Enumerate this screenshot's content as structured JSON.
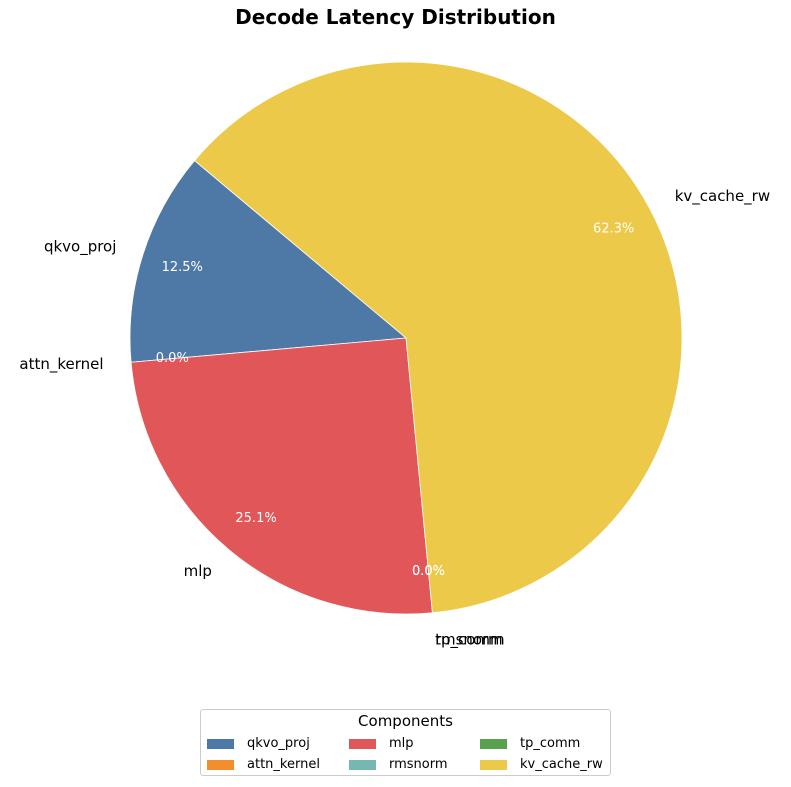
{
  "chart_data": {
    "type": "pie",
    "title": "Decode Latency Distribution",
    "categories": [
      "qkvo_proj",
      "attn_kernel",
      "mlp",
      "rmsnorm",
      "tp_comm",
      "kv_cache_rw"
    ],
    "values": [
      12.5,
      0.0,
      25.1,
      0.0,
      0.0,
      62.3
    ],
    "percent_labels": [
      "12.5%",
      "0.0%",
      "25.1%",
      "0.0%",
      "0.0%",
      "62.3%"
    ],
    "colors": [
      "#4e79a7",
      "#f28e2b",
      "#e15759",
      "#76b7b2",
      "#59a14f",
      "#edc949"
    ],
    "start_angle_deg": 140,
    "direction": "counterclockwise",
    "legend": {
      "title": "Components",
      "placement": "bottom-center",
      "columns": 3,
      "entries": [
        "qkvo_proj",
        "attn_kernel",
        "mlp",
        "rmsnorm",
        "tp_comm",
        "kv_cache_rw"
      ]
    }
  }
}
